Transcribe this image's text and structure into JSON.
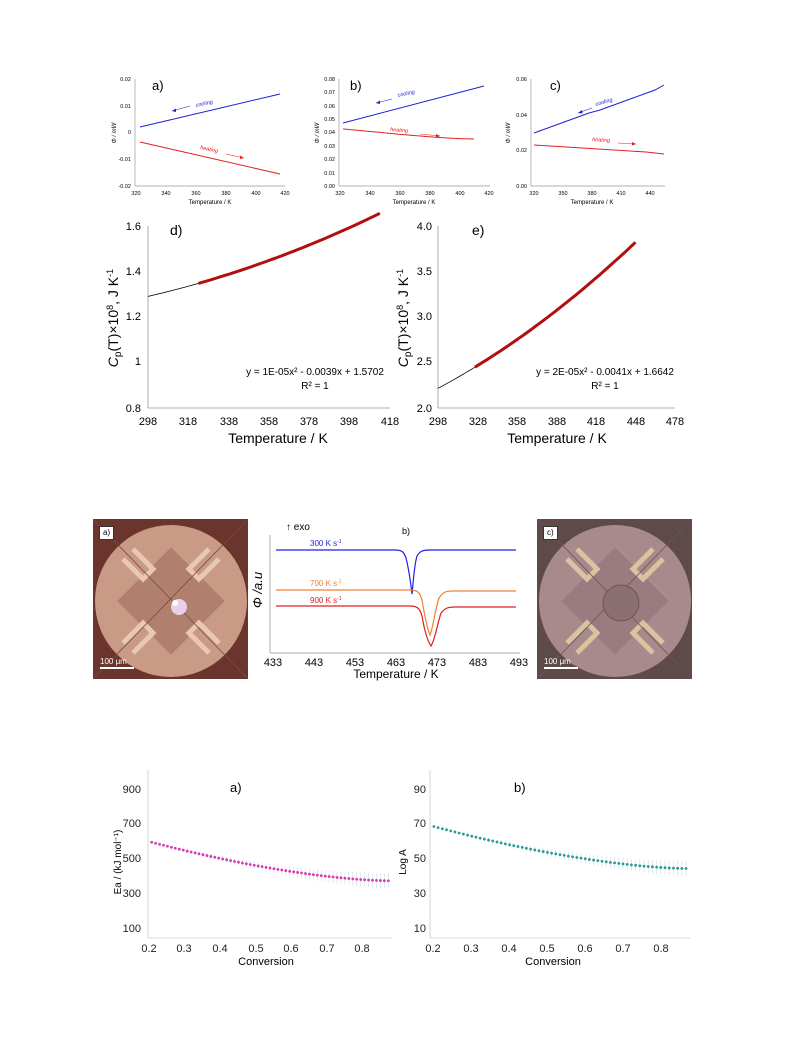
{
  "row1": {
    "a": {
      "label": "a)",
      "ylabel": "Φ / mW",
      "xlabel": "Temperature / K",
      "yticks": [
        "0.02",
        "0.01",
        "0",
        "-0.01",
        "-0.02"
      ],
      "xticks": [
        "320",
        "340",
        "360",
        "380",
        "400",
        "420"
      ],
      "cooling": "cooling",
      "heating": "heating"
    },
    "b": {
      "label": "b)",
      "ylabel": "Φ / mW",
      "xlabel": "Temperature / K",
      "yticks": [
        "0.08",
        "0.07",
        "0.06",
        "0.05",
        "0.04",
        "0.03",
        "0.02",
        "0.01",
        "0.00"
      ],
      "xticks": [
        "320",
        "340",
        "360",
        "380",
        "400",
        "420"
      ],
      "cooling": "cooling",
      "heating": "heating"
    },
    "c": {
      "label": "c)",
      "ylabel": "Φ / mW",
      "xlabel": "Temperature / K",
      "yticks": [
        "0.06",
        "0.04",
        "0.02",
        "0.00"
      ],
      "xticks": [
        "320",
        "350",
        "380",
        "410",
        "440"
      ],
      "cooling": "cooling",
      "heating": "heating"
    }
  },
  "row2": {
    "d": {
      "label": "d)",
      "xlabel": "Temperature / K",
      "ylabel_main": "C",
      "ylabel_sub": "p",
      "ylabel_rest": "(T)×10",
      "ylabel_exp": "8",
      "ylabel_unit": ", J K",
      "ylabel_unit_exp": "-1",
      "yticks": [
        "1.6",
        "1.4",
        "1.2",
        "1",
        "0.8"
      ],
      "xticks": [
        "298",
        "318",
        "338",
        "358",
        "378",
        "398",
        "418"
      ],
      "eq": "y = 1E-05x² - 0.0039x + 1.5702",
      "r2": "R² = 1"
    },
    "e": {
      "label": "e)",
      "xlabel": "Temperature / K",
      "ylabel_main": "C",
      "ylabel_sub": "p",
      "ylabel_rest": "(T)×10",
      "ylabel_exp": "8",
      "ylabel_unit": ", J K",
      "ylabel_unit_exp": "-1",
      "yticks": [
        "4.0",
        "3.5",
        "3.0",
        "2.5",
        "2.0"
      ],
      "xticks": [
        "298",
        "328",
        "358",
        "388",
        "418",
        "448",
        "478"
      ],
      "eq": "y = 2E-05x² - 0.0041x + 1.6642",
      "r2": "R² = 1"
    }
  },
  "row3": {
    "micro_a": {
      "label": "a)",
      "scale": "100 μm"
    },
    "micro_c": {
      "label": "c)",
      "scale": "100 μm"
    },
    "b": {
      "label": "b)",
      "exo": "↑ exo",
      "ylabel": "Φ /a.u",
      "xlabel": "Temperature / K",
      "xticks": [
        "433",
        "443",
        "453",
        "463",
        "473",
        "483",
        "493"
      ],
      "rate300": "300 K s",
      "rate700": "700 K s",
      "rate900": "900 K s",
      "rate_exp": "-1"
    }
  },
  "row4": {
    "a": {
      "label": "a)",
      "ylabel": "Ea / (kJ mol⁻¹)",
      "xlabel": "Conversion",
      "yticks": [
        "900",
        "700",
        "500",
        "300",
        "100"
      ],
      "xticks": [
        "0.2",
        "0.3",
        "0.4",
        "0.5",
        "0.6",
        "0.7",
        "0.8"
      ]
    },
    "b": {
      "label": "b)",
      "ylabel": "Log A",
      "xlabel": "Conversion",
      "yticks": [
        "90",
        "70",
        "50",
        "30",
        "10"
      ],
      "xticks": [
        "0.2",
        "0.3",
        "0.4",
        "0.5",
        "0.6",
        "0.7",
        "0.8"
      ]
    }
  },
  "chart_data": [
    {
      "type": "line",
      "panel": "row1-a",
      "xlim": [
        320,
        420
      ],
      "ylim": [
        -0.02,
        0.02
      ],
      "series": [
        {
          "name": "cooling",
          "color": "#1f1fd6",
          "x": [
            323,
            413
          ],
          "y": [
            0.006,
            0.015
          ]
        },
        {
          "name": "heating",
          "color": "#e02020",
          "x": [
            323,
            413
          ],
          "y": [
            -0.007,
            -0.017
          ]
        }
      ]
    },
    {
      "type": "line",
      "panel": "row1-b",
      "xlim": [
        320,
        420
      ],
      "ylim": [
        0.0,
        0.08
      ],
      "series": [
        {
          "name": "cooling",
          "color": "#1f1fd6",
          "x": [
            323,
            413
          ],
          "y": [
            0.037,
            0.068
          ]
        },
        {
          "name": "heating",
          "color": "#e02020",
          "x": [
            323,
            413
          ],
          "y": [
            0.031,
            0.025
          ]
        }
      ]
    },
    {
      "type": "line",
      "panel": "row1-c",
      "xlim": [
        320,
        460
      ],
      "ylim": [
        0.0,
        0.06
      ],
      "series": [
        {
          "name": "cooling",
          "color": "#1f1fd6",
          "x": [
            323,
            458
          ],
          "y": [
            0.029,
            0.056
          ]
        },
        {
          "name": "heating",
          "color": "#e02020",
          "x": [
            323,
            458
          ],
          "y": [
            0.023,
            0.018
          ]
        }
      ]
    },
    {
      "type": "line",
      "panel": "row2-d",
      "xlim": [
        298,
        418
      ],
      "ylim": [
        0.8,
        1.6
      ],
      "fit": {
        "a": 1e-05,
        "b": -0.0039,
        "c": 1.5702
      },
      "series": [
        {
          "name": "fit",
          "color": "#000000",
          "x": [
            298,
            323
          ]
        },
        {
          "name": "data",
          "color": "#b01010",
          "x": [
            323,
            413
          ]
        }
      ]
    },
    {
      "type": "line",
      "panel": "row2-e",
      "xlim": [
        298,
        478
      ],
      "ylim": [
        2.0,
        4.0
      ],
      "fit": {
        "a": 2e-05,
        "b": -0.0041,
        "c": 1.6642
      },
      "series": [
        {
          "name": "fit",
          "color": "#000000",
          "x": [
            298,
            326
          ]
        },
        {
          "name": "data",
          "color": "#b01010",
          "x": [
            326,
            448
          ]
        }
      ]
    },
    {
      "type": "line",
      "panel": "row3-b",
      "xlim": [
        433,
        493
      ],
      "series": [
        {
          "name": "300 K s-1",
          "color": "#1f1fe0",
          "center": 467,
          "depth": 1.0,
          "offset": 1.0
        },
        {
          "name": "700 K s-1",
          "color": "#f08030",
          "center": 470.5,
          "depth": 0.7,
          "offset": 0.55
        },
        {
          "name": "900 K s-1",
          "color": "#e02020",
          "center": 471,
          "depth": 0.95,
          "offset": 0.38
        }
      ]
    },
    {
      "type": "scatter",
      "panel": "row4-a",
      "xlim": [
        0.19,
        0.85
      ],
      "ylim": [
        100,
        900
      ],
      "color": "#d83ab0",
      "x_start": 0.2,
      "x_end": 0.84,
      "y_start": 590,
      "y_end": 370
    },
    {
      "type": "scatter",
      "panel": "row4-b",
      "xlim": [
        0.19,
        0.85
      ],
      "ylim": [
        10,
        90
      ],
      "color": "#2a9a98",
      "x_start": 0.2,
      "x_end": 0.84,
      "y_start": 68,
      "y_end": 44
    }
  ]
}
